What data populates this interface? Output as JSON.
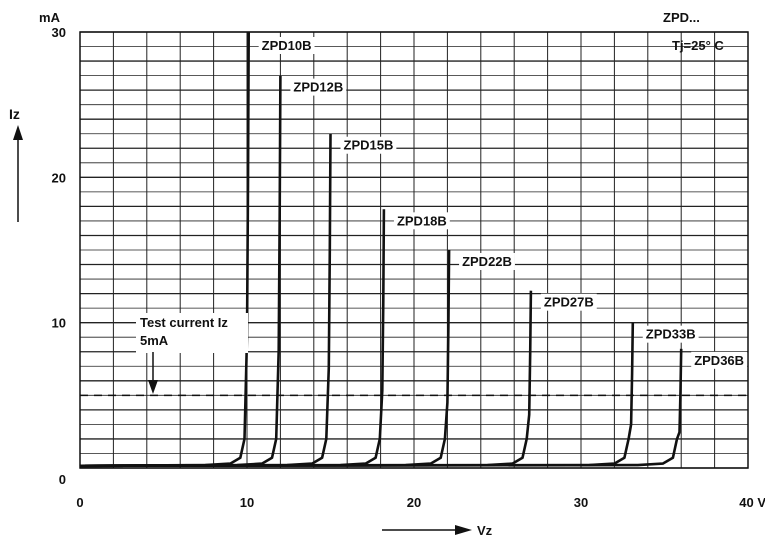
{
  "chart_data": {
    "type": "line",
    "title": "ZPD...",
    "annotation_temp": "Tj=25° C",
    "ylabel": "Iz",
    "yunit": "mA",
    "xlabel": "Vz",
    "xunit_label": "40 V",
    "xlim": [
      0,
      40
    ],
    "ylim": [
      0,
      30
    ],
    "x_ticks": [
      {
        "value": 0,
        "label": "0"
      },
      {
        "value": 10,
        "label": "10"
      },
      {
        "value": 20,
        "label": "20"
      },
      {
        "value": 30,
        "label": "30"
      }
    ],
    "y_ticks": [
      {
        "value": 0,
        "label": "0"
      },
      {
        "value": 10,
        "label": "10"
      },
      {
        "value": 20,
        "label": "20"
      },
      {
        "value": 30,
        "label": "30"
      }
    ],
    "grid": true,
    "test_current": {
      "value": 5,
      "label_line1": "Test current Iz",
      "label_line2": "5mA"
    },
    "series": [
      {
        "name": "ZPD10B",
        "vz": 10.0,
        "imax": 30
      },
      {
        "name": "ZPD12B",
        "vz": 11.9,
        "imax": 27
      },
      {
        "name": "ZPD15B",
        "vz": 14.9,
        "imax": 23
      },
      {
        "name": "ZPD18B",
        "vz": 18.1,
        "imax": 17.8
      },
      {
        "name": "ZPD22B",
        "vz": 22.0,
        "imax": 15
      },
      {
        "name": "ZPD27B",
        "vz": 26.9,
        "imax": 12.2
      },
      {
        "name": "ZPD33B",
        "vz": 33.0,
        "imax": 10
      },
      {
        "name": "ZPD36B",
        "vz": 35.9,
        "imax": 8.2
      }
    ]
  }
}
